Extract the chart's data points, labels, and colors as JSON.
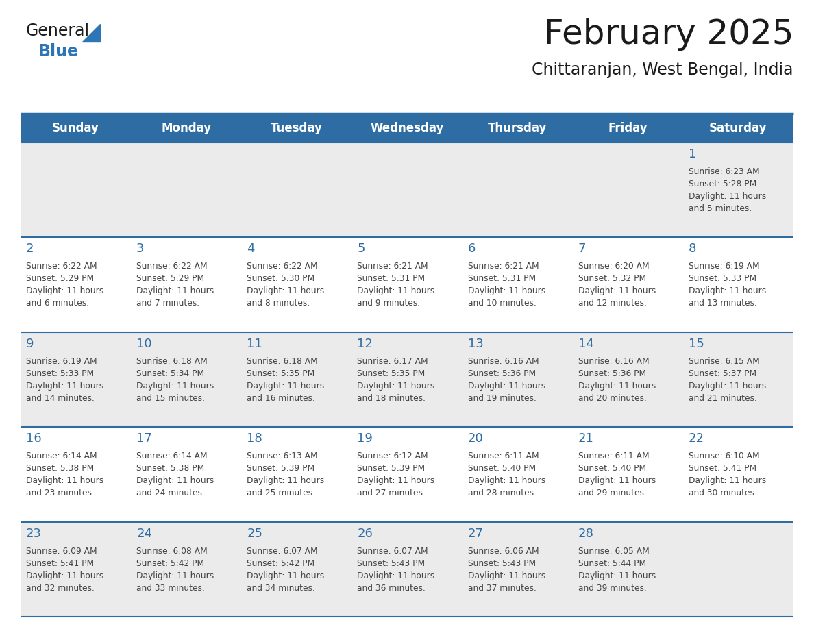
{
  "title": "February 2025",
  "subtitle": "Chittaranjan, West Bengal, India",
  "header_bg": "#2E6DA4",
  "header_text_color": "#FFFFFF",
  "cell_bg_odd": "#EBEBEB",
  "cell_bg_even": "#FFFFFF",
  "day_number_color": "#2E6DA4",
  "text_color": "#444444",
  "border_color": "#2E6DA4",
  "days_of_week": [
    "Sunday",
    "Monday",
    "Tuesday",
    "Wednesday",
    "Thursday",
    "Friday",
    "Saturday"
  ],
  "weeks": [
    [
      {
        "day": null,
        "sunrise": null,
        "sunset": null,
        "daylight": null
      },
      {
        "day": null,
        "sunrise": null,
        "sunset": null,
        "daylight": null
      },
      {
        "day": null,
        "sunrise": null,
        "sunset": null,
        "daylight": null
      },
      {
        "day": null,
        "sunrise": null,
        "sunset": null,
        "daylight": null
      },
      {
        "day": null,
        "sunrise": null,
        "sunset": null,
        "daylight": null
      },
      {
        "day": null,
        "sunrise": null,
        "sunset": null,
        "daylight": null
      },
      {
        "day": 1,
        "sunrise": "6:23 AM",
        "sunset": "5:28 PM",
        "daylight": "11 hours and 5 minutes."
      }
    ],
    [
      {
        "day": 2,
        "sunrise": "6:22 AM",
        "sunset": "5:29 PM",
        "daylight": "11 hours and 6 minutes."
      },
      {
        "day": 3,
        "sunrise": "6:22 AM",
        "sunset": "5:29 PM",
        "daylight": "11 hours and 7 minutes."
      },
      {
        "day": 4,
        "sunrise": "6:22 AM",
        "sunset": "5:30 PM",
        "daylight": "11 hours and 8 minutes."
      },
      {
        "day": 5,
        "sunrise": "6:21 AM",
        "sunset": "5:31 PM",
        "daylight": "11 hours and 9 minutes."
      },
      {
        "day": 6,
        "sunrise": "6:21 AM",
        "sunset": "5:31 PM",
        "daylight": "11 hours and 10 minutes."
      },
      {
        "day": 7,
        "sunrise": "6:20 AM",
        "sunset": "5:32 PM",
        "daylight": "11 hours and 12 minutes."
      },
      {
        "day": 8,
        "sunrise": "6:19 AM",
        "sunset": "5:33 PM",
        "daylight": "11 hours and 13 minutes."
      }
    ],
    [
      {
        "day": 9,
        "sunrise": "6:19 AM",
        "sunset": "5:33 PM",
        "daylight": "11 hours and 14 minutes."
      },
      {
        "day": 10,
        "sunrise": "6:18 AM",
        "sunset": "5:34 PM",
        "daylight": "11 hours and 15 minutes."
      },
      {
        "day": 11,
        "sunrise": "6:18 AM",
        "sunset": "5:35 PM",
        "daylight": "11 hours and 16 minutes."
      },
      {
        "day": 12,
        "sunrise": "6:17 AM",
        "sunset": "5:35 PM",
        "daylight": "11 hours and 18 minutes."
      },
      {
        "day": 13,
        "sunrise": "6:16 AM",
        "sunset": "5:36 PM",
        "daylight": "11 hours and 19 minutes."
      },
      {
        "day": 14,
        "sunrise": "6:16 AM",
        "sunset": "5:36 PM",
        "daylight": "11 hours and 20 minutes."
      },
      {
        "day": 15,
        "sunrise": "6:15 AM",
        "sunset": "5:37 PM",
        "daylight": "11 hours and 21 minutes."
      }
    ],
    [
      {
        "day": 16,
        "sunrise": "6:14 AM",
        "sunset": "5:38 PM",
        "daylight": "11 hours and 23 minutes."
      },
      {
        "day": 17,
        "sunrise": "6:14 AM",
        "sunset": "5:38 PM",
        "daylight": "11 hours and 24 minutes."
      },
      {
        "day": 18,
        "sunrise": "6:13 AM",
        "sunset": "5:39 PM",
        "daylight": "11 hours and 25 minutes."
      },
      {
        "day": 19,
        "sunrise": "6:12 AM",
        "sunset": "5:39 PM",
        "daylight": "11 hours and 27 minutes."
      },
      {
        "day": 20,
        "sunrise": "6:11 AM",
        "sunset": "5:40 PM",
        "daylight": "11 hours and 28 minutes."
      },
      {
        "day": 21,
        "sunrise": "6:11 AM",
        "sunset": "5:40 PM",
        "daylight": "11 hours and 29 minutes."
      },
      {
        "day": 22,
        "sunrise": "6:10 AM",
        "sunset": "5:41 PM",
        "daylight": "11 hours and 30 minutes."
      }
    ],
    [
      {
        "day": 23,
        "sunrise": "6:09 AM",
        "sunset": "5:41 PM",
        "daylight": "11 hours and 32 minutes."
      },
      {
        "day": 24,
        "sunrise": "6:08 AM",
        "sunset": "5:42 PM",
        "daylight": "11 hours and 33 minutes."
      },
      {
        "day": 25,
        "sunrise": "6:07 AM",
        "sunset": "5:42 PM",
        "daylight": "11 hours and 34 minutes."
      },
      {
        "day": 26,
        "sunrise": "6:07 AM",
        "sunset": "5:43 PM",
        "daylight": "11 hours and 36 minutes."
      },
      {
        "day": 27,
        "sunrise": "6:06 AM",
        "sunset": "5:43 PM",
        "daylight": "11 hours and 37 minutes."
      },
      {
        "day": 28,
        "sunrise": "6:05 AM",
        "sunset": "5:44 PM",
        "daylight": "11 hours and 39 minutes."
      },
      {
        "day": null,
        "sunrise": null,
        "sunset": null,
        "daylight": null
      }
    ]
  ],
  "logo_color_general": "#1a1a1a",
  "logo_color_blue": "#2E75B6",
  "logo_triangle_color": "#2E75B6",
  "fig_width": 11.88,
  "fig_height": 9.18,
  "dpi": 100
}
